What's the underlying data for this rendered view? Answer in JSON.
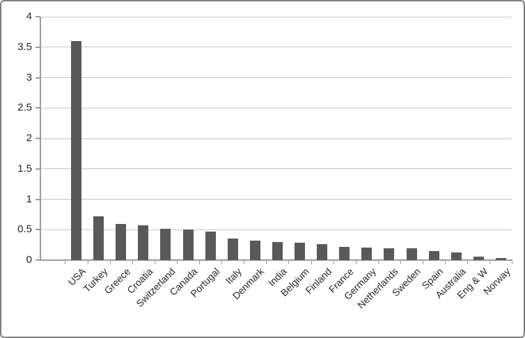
{
  "chart_data": {
    "type": "bar",
    "title": "",
    "xlabel": "",
    "ylabel": "",
    "categories": [
      "USA",
      "Turkey",
      "Greece",
      "Croatia",
      "Switzerland",
      "Canada",
      "Portugal",
      "Italy",
      "Denmark",
      "India",
      "Belgium",
      "Finland",
      "France",
      "Germany",
      "Netherlands",
      "Sweden",
      "Spain",
      "Australia",
      "Eng & W",
      "Norway"
    ],
    "values": [
      3.6,
      0.72,
      0.59,
      0.57,
      0.52,
      0.5,
      0.47,
      0.36,
      0.32,
      0.3,
      0.29,
      0.26,
      0.22,
      0.21,
      0.2,
      0.19,
      0.15,
      0.13,
      0.06,
      0.04
    ],
    "ylim": [
      0,
      4
    ],
    "ytick_step": 0.5,
    "ytick_labels": [
      "0",
      "0.5",
      "1",
      "1.5",
      "2",
      "2.5",
      "3",
      "3.5",
      "4"
    ],
    "grid": true,
    "legend": "none",
    "colors": {
      "bar": "#595959",
      "gridline": "#c6c6c6",
      "axis": "#9b9b9b",
      "text": "#262626",
      "background": "#ffffff",
      "frame_border": "#7d7d7d"
    }
  }
}
